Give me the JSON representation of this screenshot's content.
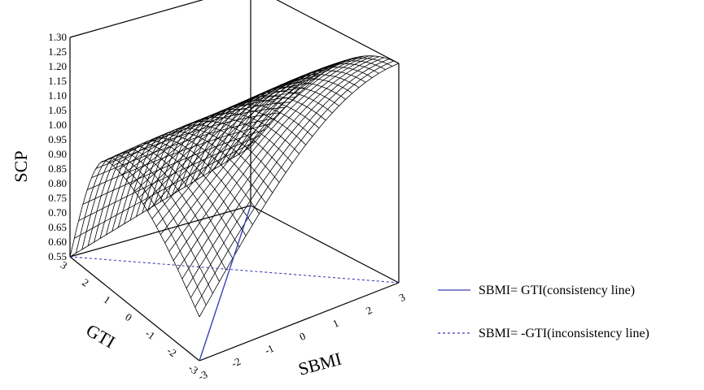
{
  "chart_data": {
    "type": "surface",
    "zlabel": "SCP",
    "xlabel": "SBMI",
    "ylabel": "GTI",
    "x_ticks": [
      "-3",
      "-2",
      "-1",
      "0",
      "1",
      "2",
      "3"
    ],
    "y_ticks": [
      "3",
      "2",
      "1",
      "0",
      "-1",
      "-2",
      "-3"
    ],
    "z_ticks": [
      "0.55",
      "0.60",
      "0.65",
      "0.70",
      "0.75",
      "0.80",
      "0.85",
      "0.90",
      "0.95",
      "1.00",
      "1.05",
      "1.10",
      "1.15",
      "1.20",
      "1.25",
      "1.30"
    ],
    "xlim": [
      -3,
      3
    ],
    "ylim": [
      -3,
      3
    ],
    "zlim": [
      0.55,
      1.3
    ],
    "surface_corners": [
      {
        "SBMI": -3,
        "GTI": 3,
        "SCP": 0.55
      },
      {
        "SBMI": 3,
        "GTI": 3,
        "SCP": 0.75
      },
      {
        "SBMI": 3,
        "GTI": -3,
        "SCP": 1.3
      },
      {
        "SBMI": -3,
        "GTI": -3,
        "SCP": 0.7
      }
    ],
    "surface_peaks": [
      {
        "along": "SBMI = -3 edge",
        "GTI": 1.2,
        "SCP": 0.98
      },
      {
        "along": "GTI = -3 edge",
        "SBMI": 3,
        "SCP": 1.3
      }
    ],
    "legend": [
      {
        "label": "SBMI= GTI(consistency line)",
        "style": "solid",
        "color": "#3b3fb5"
      },
      {
        "label": "SBMI= -GTI(inconsistency line)",
        "style": "dashed",
        "color": "#3b3fb5"
      }
    ],
    "legend_position": "right",
    "colors": {
      "mesh": "#000000",
      "line": "#3b3fb5"
    }
  }
}
